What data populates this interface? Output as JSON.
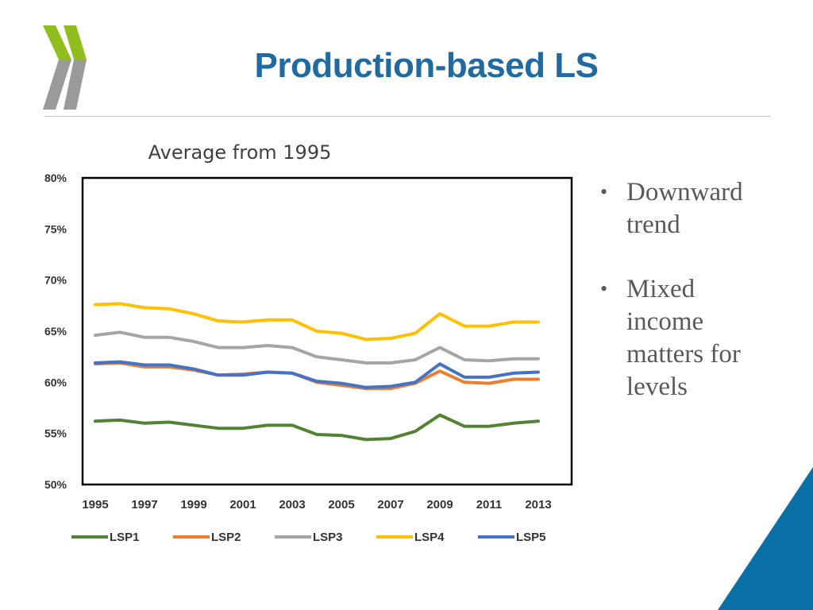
{
  "slide": {
    "title": "Production-based LS",
    "bullets": [
      {
        "text": "Downward trend"
      },
      {
        "text": "Mixed income matters for levels"
      }
    ]
  },
  "colors": {
    "title": "#1f6aa0",
    "logo_green": "#8fbe1e",
    "logo_gray": "#9a9a9a",
    "corner": "#0b6fa7"
  },
  "chart_data": {
    "type": "line",
    "title": "Average from 1995",
    "xlabel": "",
    "ylabel": "",
    "x": [
      1995,
      1996,
      1997,
      1998,
      1999,
      2000,
      2001,
      2002,
      2003,
      2004,
      2005,
      2006,
      2007,
      2008,
      2009,
      2010,
      2011,
      2012,
      2013
    ],
    "xticks": [
      "1995",
      "1997",
      "1999",
      "2001",
      "2003",
      "2005",
      "2007",
      "2009",
      "2011",
      "2013"
    ],
    "yticks": [
      "50%",
      "55%",
      "60%",
      "65%",
      "70%",
      "75%",
      "80%"
    ],
    "ylim": [
      50,
      80
    ],
    "legend_position": "bottom",
    "series": [
      {
        "name": "LSP1",
        "color": "#548235",
        "values": [
          56.2,
          56.3,
          56.0,
          56.1,
          55.8,
          55.5,
          55.5,
          55.8,
          55.8,
          54.9,
          54.8,
          54.4,
          54.5,
          55.2,
          56.8,
          55.7,
          55.7,
          56.0,
          56.2
        ]
      },
      {
        "name": "LSP2",
        "color": "#ed7d31",
        "values": [
          61.8,
          61.9,
          61.5,
          61.5,
          61.2,
          60.7,
          60.8,
          61.0,
          60.9,
          60.0,
          59.7,
          59.4,
          59.4,
          59.9,
          61.1,
          60.0,
          59.9,
          60.3,
          60.3
        ]
      },
      {
        "name": "LSP3",
        "color": "#a5a5a5",
        "values": [
          64.6,
          64.9,
          64.4,
          64.4,
          64.0,
          63.4,
          63.4,
          63.6,
          63.4,
          62.5,
          62.2,
          61.9,
          61.9,
          62.2,
          63.4,
          62.2,
          62.1,
          62.3,
          62.3
        ]
      },
      {
        "name": "LSP4",
        "color": "#ffc000",
        "values": [
          67.6,
          67.7,
          67.3,
          67.2,
          66.7,
          66.0,
          65.9,
          66.1,
          66.1,
          65.0,
          64.8,
          64.2,
          64.3,
          64.8,
          66.7,
          65.5,
          65.5,
          65.9,
          65.9
        ]
      },
      {
        "name": "LSP5",
        "color": "#4472c4",
        "values": [
          61.9,
          62.0,
          61.7,
          61.7,
          61.3,
          60.7,
          60.7,
          61.0,
          60.9,
          60.1,
          59.9,
          59.5,
          59.6,
          60.0,
          61.8,
          60.5,
          60.5,
          60.9,
          61.0
        ]
      }
    ]
  }
}
